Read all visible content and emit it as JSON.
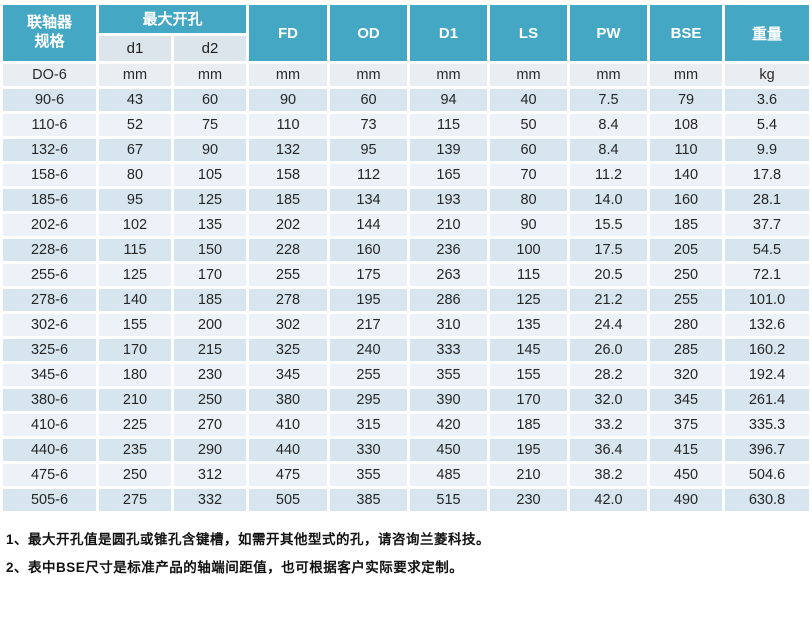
{
  "table": {
    "header": {
      "spec_label_line1": "联轴器",
      "spec_label_line2": "规格",
      "max_bore_label": "最大开孔",
      "sub_columns": [
        "d1",
        "d2"
      ],
      "columns": [
        "FD",
        "OD",
        "D1",
        "LS",
        "PW",
        "BSE",
        "重量"
      ]
    },
    "units_row": {
      "cells": [
        "DO-6",
        "mm",
        "mm",
        "mm",
        "mm",
        "mm",
        "mm",
        "mm",
        "mm",
        "kg"
      ]
    },
    "rows": [
      {
        "spec": "90-6",
        "values": [
          "43",
          "60",
          "90",
          "60",
          "94",
          "40",
          "7.5",
          "79",
          "3.6"
        ]
      },
      {
        "spec": "110-6",
        "values": [
          "52",
          "75",
          "110",
          "73",
          "115",
          "50",
          "8.4",
          "108",
          "5.4"
        ]
      },
      {
        "spec": "132-6",
        "values": [
          "67",
          "90",
          "132",
          "95",
          "139",
          "60",
          "8.4",
          "110",
          "9.9"
        ]
      },
      {
        "spec": "158-6",
        "values": [
          "80",
          "105",
          "158",
          "112",
          "165",
          "70",
          "11.2",
          "140",
          "17.8"
        ]
      },
      {
        "spec": "185-6",
        "values": [
          "95",
          "125",
          "185",
          "134",
          "193",
          "80",
          "14.0",
          "160",
          "28.1"
        ]
      },
      {
        "spec": "202-6",
        "values": [
          "102",
          "135",
          "202",
          "144",
          "210",
          "90",
          "15.5",
          "185",
          "37.7"
        ]
      },
      {
        "spec": "228-6",
        "values": [
          "115",
          "150",
          "228",
          "160",
          "236",
          "100",
          "17.5",
          "205",
          "54.5"
        ]
      },
      {
        "spec": "255-6",
        "values": [
          "125",
          "170",
          "255",
          "175",
          "263",
          "115",
          "20.5",
          "250",
          "72.1"
        ]
      },
      {
        "spec": "278-6",
        "values": [
          "140",
          "185",
          "278",
          "195",
          "286",
          "125",
          "21.2",
          "255",
          "101.0"
        ]
      },
      {
        "spec": "302-6",
        "values": [
          "155",
          "200",
          "302",
          "217",
          "310",
          "135",
          "24.4",
          "280",
          "132.6"
        ]
      },
      {
        "spec": "325-6",
        "values": [
          "170",
          "215",
          "325",
          "240",
          "333",
          "145",
          "26.0",
          "285",
          "160.2"
        ]
      },
      {
        "spec": "345-6",
        "values": [
          "180",
          "230",
          "345",
          "255",
          "355",
          "155",
          "28.2",
          "320",
          "192.4"
        ]
      },
      {
        "spec": "380-6",
        "values": [
          "210",
          "250",
          "380",
          "295",
          "390",
          "170",
          "32.0",
          "345",
          "261.4"
        ]
      },
      {
        "spec": "410-6",
        "values": [
          "225",
          "270",
          "410",
          "315",
          "420",
          "185",
          "33.2",
          "375",
          "335.3"
        ]
      },
      {
        "spec": "440-6",
        "values": [
          "235",
          "290",
          "440",
          "330",
          "450",
          "195",
          "36.4",
          "415",
          "396.7"
        ]
      },
      {
        "spec": "475-6",
        "values": [
          "250",
          "312",
          "475",
          "355",
          "485",
          "210",
          "38.2",
          "450",
          "504.6"
        ]
      },
      {
        "spec": "505-6",
        "values": [
          "275",
          "332",
          "505",
          "385",
          "515",
          "230",
          "42.0",
          "490",
          "630.8"
        ]
      }
    ]
  },
  "notes": [
    "1、最大开孔值是圆孔或锥孔含键槽，如需开其他型式的孔，请咨询兰菱科技。",
    "2、表中BSE尺寸是标准产品的轴端间距值，也可根据客户实际要求定制。"
  ],
  "colors": {
    "header_teal": "#44a7c3",
    "subheader_bg": "#dbe5eb",
    "row_dark": "#d7e5ee",
    "row_light": "#ecf2f7",
    "units_bg": "#e9eef2"
  }
}
